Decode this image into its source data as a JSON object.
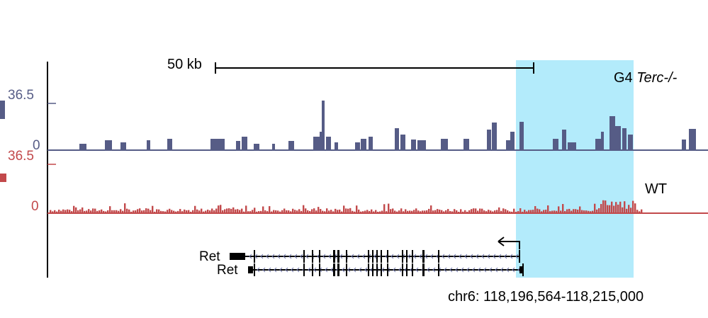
{
  "scale_bar": {
    "label": "50 kb"
  },
  "highlight": {
    "color": "#b3ebfb"
  },
  "tracks": [
    {
      "id": "g4",
      "label_main": "G4 ",
      "label_italic": "Terc-/-",
      "max_label": "36.5",
      "min_label": "0",
      "color": "#565c86"
    },
    {
      "id": "wt",
      "label_main": "WT",
      "label_italic": "",
      "max_label": "36.5",
      "min_label": "0",
      "color": "#c2494b"
    }
  ],
  "genes": [
    {
      "name": "Ret"
    },
    {
      "name": "Ret"
    }
  ],
  "coordinates": "chr6: 118,196,564-118,215,000"
}
